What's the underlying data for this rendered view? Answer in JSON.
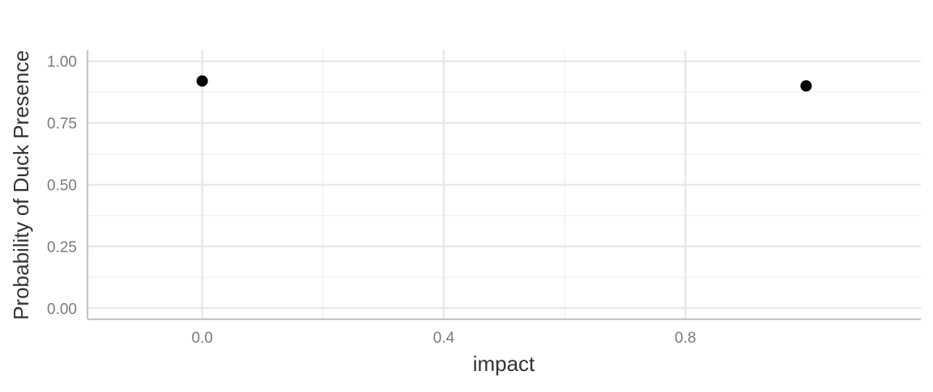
{
  "chart_data": {
    "type": "scatter",
    "title": "",
    "xlabel": "impact",
    "ylabel": "Probability of Duck Presence",
    "xlim": [
      -0.19,
      1.19
    ],
    "ylim": [
      -0.045,
      1.045
    ],
    "x_ticks": [
      0.0,
      0.4,
      0.8
    ],
    "x_tick_labels": [
      "0.0",
      "0.4",
      "0.8"
    ],
    "x_minor_ticks": [
      0.2,
      0.6
    ],
    "y_ticks": [
      0.0,
      0.25,
      0.5,
      0.75,
      1.0
    ],
    "y_tick_labels": [
      "0.00",
      "0.25",
      "0.50",
      "0.75",
      "1.00"
    ],
    "y_minor_ticks": [
      0.125,
      0.375,
      0.625,
      0.875
    ],
    "grid": true,
    "legend": "none",
    "series": [
      {
        "points": [
          {
            "x": 0.0,
            "y": 0.92
          },
          {
            "x": 1.0,
            "y": 0.9
          }
        ],
        "color": "#000000"
      }
    ],
    "colors": {
      "grid_major": "#e6e6e6",
      "grid_minor": "#efefef",
      "axis_line": "#c4c4c4",
      "tick_text": "#7a7a7a",
      "title_text": "#333333"
    }
  }
}
